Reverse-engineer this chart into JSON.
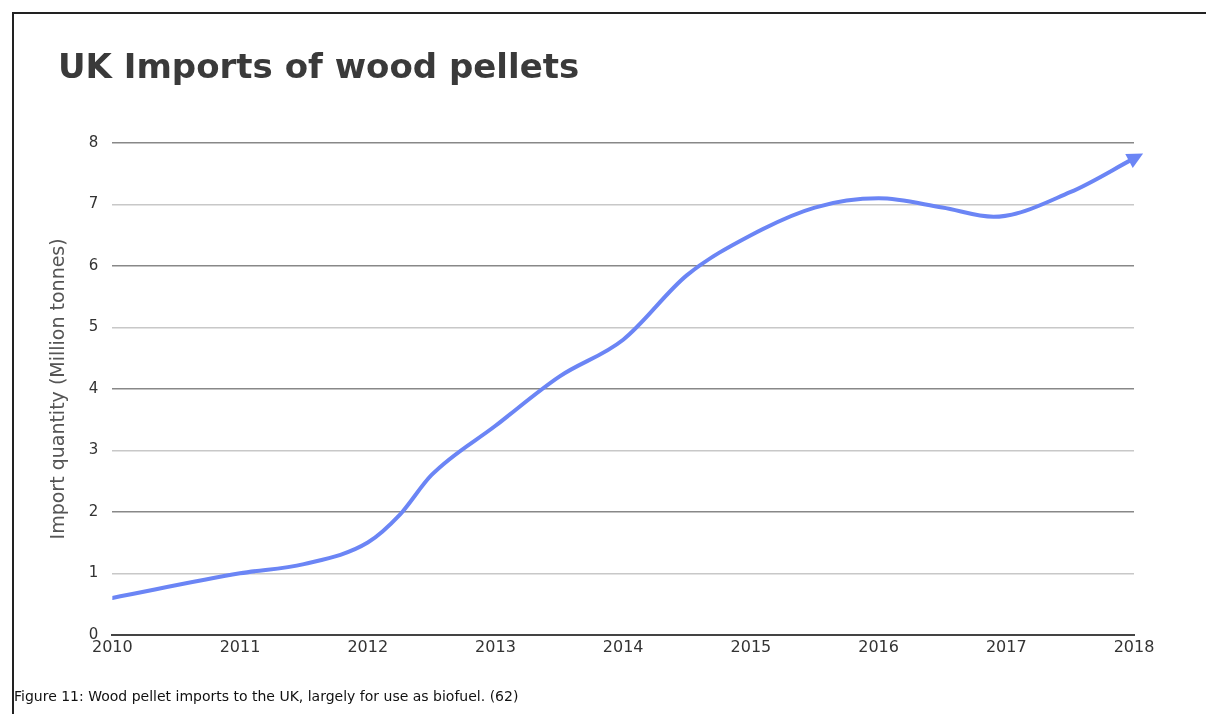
{
  "chart_data": {
    "type": "line",
    "title": "UK Imports of wood pellets",
    "ylabel": "Import quantity (Million tonnes)",
    "x": [
      2010,
      2011,
      2011.5,
      2012,
      2012.25,
      2012.5,
      2013,
      2013.5,
      2014,
      2014.5,
      2015,
      2015.5,
      2016,
      2016.5,
      2016.9,
      2017.5,
      2018
    ],
    "series": [
      {
        "color": "#6b85f5",
        "values": [
          0.6,
          1.0,
          1.15,
          1.5,
          1.95,
          2.6,
          3.4,
          4.2,
          4.8,
          5.85,
          6.5,
          6.95,
          7.1,
          6.95,
          6.8,
          7.2,
          7.75
        ]
      }
    ],
    "xlim": [
      2010,
      2018
    ],
    "xticks": [
      2010,
      2011,
      2012,
      2013,
      2014,
      2015,
      2016,
      2017,
      2018
    ],
    "ylim": [
      0,
      8
    ],
    "yticks": [
      0,
      1,
      2,
      3,
      4,
      5,
      6,
      7,
      8
    ],
    "grid": "y",
    "legend": false,
    "marker": "none",
    "line_style": "solid",
    "annotations": [
      "Figure 11: Wood pellet imports to the UK, largely for use as biofuel. (62)"
    ]
  }
}
